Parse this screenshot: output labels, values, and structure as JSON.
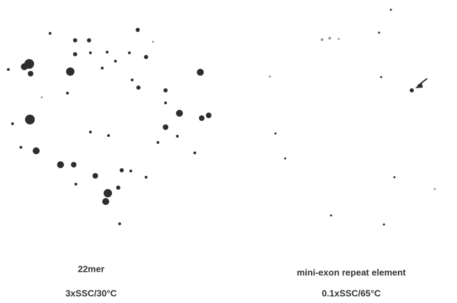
{
  "panels": [
    {
      "label": "22mer",
      "condition": "3xSSC/30°C"
    },
    {
      "label": "mini-exon repeat element",
      "condition": "0.1xSSC/65°C"
    }
  ]
}
